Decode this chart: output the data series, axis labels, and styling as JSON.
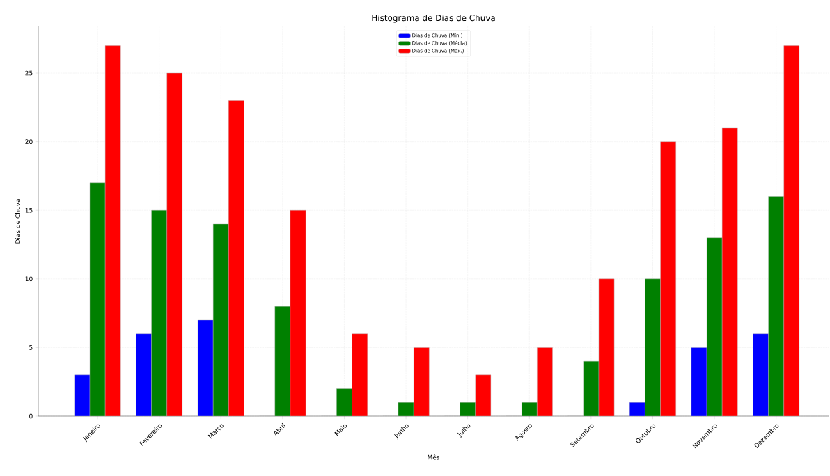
{
  "chart_data": {
    "type": "bar",
    "title": "Histograma de Dias de Chuva",
    "xlabel": "Mês",
    "ylabel": "Dias de Chuva",
    "categories": [
      "Janeiro",
      "Fevereiro",
      "Março",
      "Abril",
      "Maio",
      "Junho",
      "Julho",
      "Agosto",
      "Setembro",
      "Outubro",
      "Novembro",
      "Dezembro"
    ],
    "series": [
      {
        "name": "Dias de Chuva (Mín.)",
        "color": "#0000ff",
        "values": [
          3,
          6,
          7,
          0,
          0,
          0,
          0,
          0,
          0,
          1,
          5,
          6
        ]
      },
      {
        "name": "Dias de Chuva (Média)",
        "color": "#008000",
        "values": [
          17,
          15,
          14,
          8,
          2,
          1,
          1,
          1,
          4,
          10,
          13,
          16
        ]
      },
      {
        "name": "Dias de Chuva (Máx.)",
        "color": "#ff0000",
        "values": [
          27,
          25,
          23,
          15,
          6,
          5,
          3,
          5,
          10,
          20,
          21,
          27
        ]
      }
    ],
    "ylim": [
      0,
      28.4
    ],
    "yticks": [
      0,
      5,
      10,
      15,
      20,
      25
    ],
    "grid": true,
    "legend": "top"
  }
}
